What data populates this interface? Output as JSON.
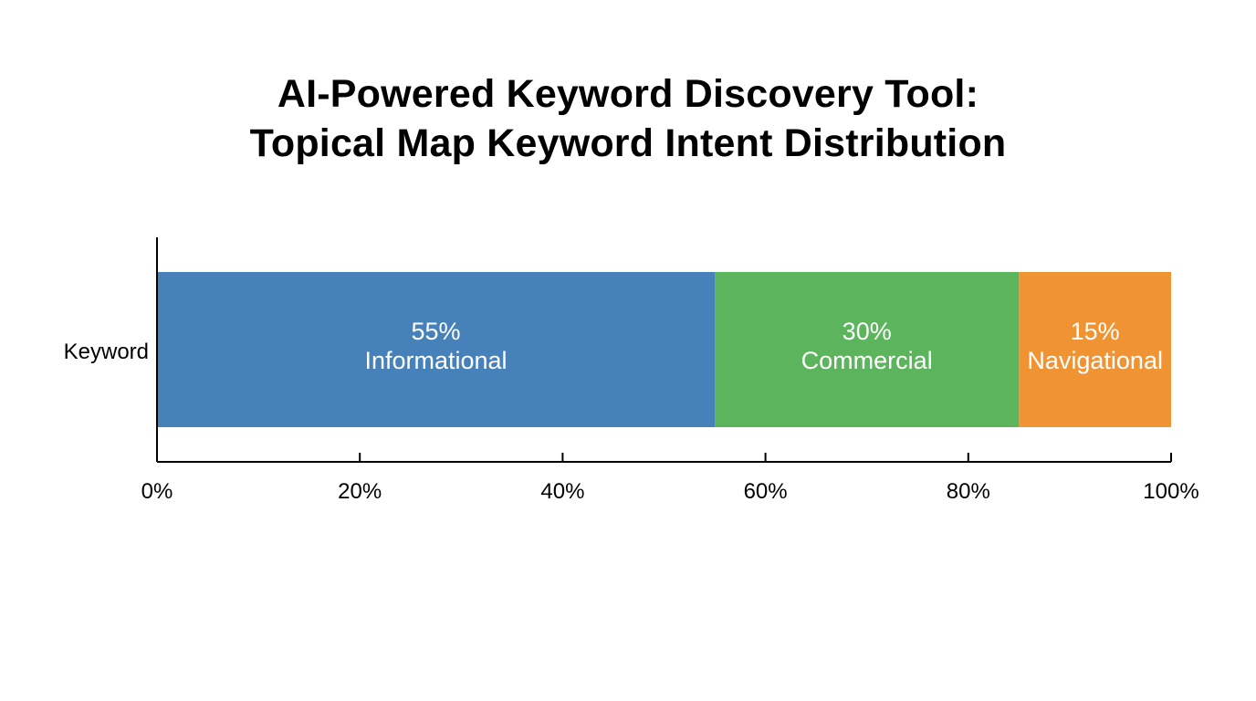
{
  "title": {
    "line1": "AI-Powered Keyword Discovery Tool:",
    "line2": "Topical Map Keyword Intent Distribution"
  },
  "chart_data": {
    "type": "bar",
    "orientation": "horizontal",
    "stacked": true,
    "categories": [
      "Keyword"
    ],
    "series": [
      {
        "name": "Informational",
        "values": [
          55
        ],
        "value_label": "55%",
        "color": "#4682b9"
      },
      {
        "name": "Commercial",
        "values": [
          30
        ],
        "value_label": "30%",
        "color": "#5cb45c"
      },
      {
        "name": "Navigational",
        "values": [
          15
        ],
        "value_label": "15%",
        "color": "#f09433"
      }
    ],
    "xlim": [
      0,
      100
    ],
    "xticks": [
      0,
      20,
      40,
      60,
      80,
      100
    ],
    "xtick_labels": [
      "0%",
      "20%",
      "40%",
      "60%",
      "80%",
      "100%"
    ],
    "xlabel": "",
    "ylabel": "",
    "grid": false,
    "legend": "none"
  }
}
